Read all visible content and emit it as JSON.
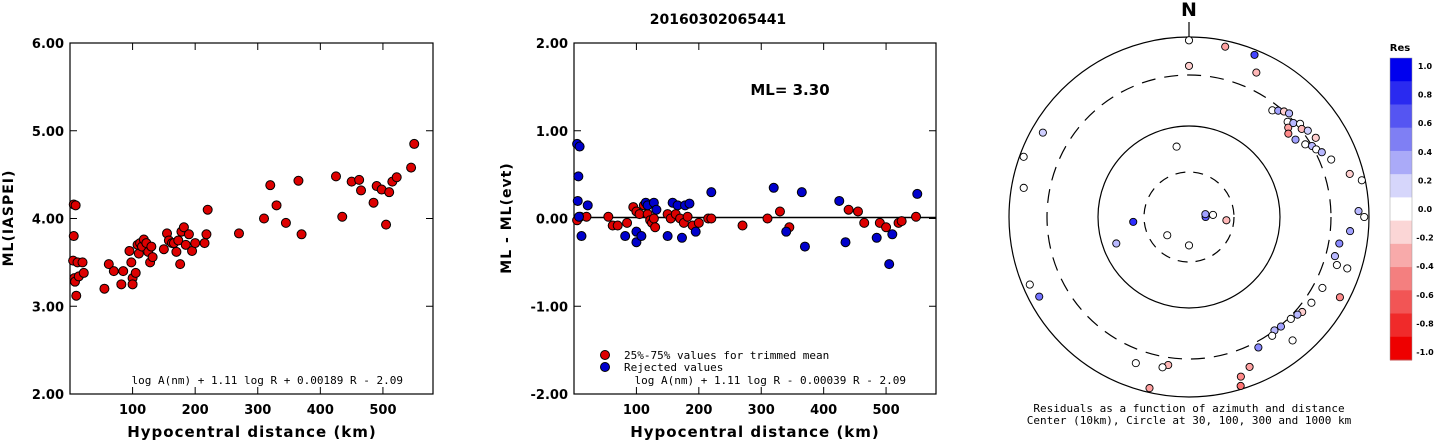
{
  "title": "20160302065441",
  "chart_data": [
    {
      "type": "scatter",
      "xlabel": "Hypocentral distance (km)",
      "ylabel": "ML(IASPEI)",
      "xlim": [
        0,
        580
      ],
      "ylim": [
        2.0,
        6.0
      ],
      "x_ticks": [
        "100",
        "200",
        "300",
        "400",
        "500"
      ],
      "y_ticks": [
        "2.00",
        "3.00",
        "4.00",
        "5.00",
        "6.00"
      ],
      "formula": "log A(nm) + 1.11 log R + 0.00189 R - 2.09",
      "series": [
        {
          "color": "#dd0000",
          "points": [
            [
              5,
              3.52
            ],
            [
              6,
              4.16
            ],
            [
              9,
              4.15
            ],
            [
              6,
              3.8
            ],
            [
              7,
              3.32
            ],
            [
              8,
              3.28
            ],
            [
              10,
              3.12
            ],
            [
              12,
              3.5
            ],
            [
              14,
              3.34
            ],
            [
              22,
              3.38
            ],
            [
              20,
              3.5
            ],
            [
              55,
              3.2
            ],
            [
              62,
              3.48
            ],
            [
              70,
              3.4
            ],
            [
              82,
              3.25
            ],
            [
              85,
              3.4
            ],
            [
              95,
              3.63
            ],
            [
              98,
              3.5
            ],
            [
              100,
              3.32
            ],
            [
              100,
              3.25
            ],
            [
              105,
              3.38
            ],
            [
              108,
              3.7
            ],
            [
              110,
              3.6
            ],
            [
              112,
              3.72
            ],
            [
              115,
              3.68
            ],
            [
              118,
              3.76
            ],
            [
              122,
              3.72
            ],
            [
              125,
              3.62
            ],
            [
              128,
              3.5
            ],
            [
              130,
              3.68
            ],
            [
              132,
              3.56
            ],
            [
              150,
              3.65
            ],
            [
              155,
              3.83
            ],
            [
              158,
              3.75
            ],
            [
              163,
              3.72
            ],
            [
              166,
              3.72
            ],
            [
              170,
              3.62
            ],
            [
              173,
              3.75
            ],
            [
              176,
              3.48
            ],
            [
              178,
              3.85
            ],
            [
              182,
              3.9
            ],
            [
              185,
              3.7
            ],
            [
              190,
              3.82
            ],
            [
              195,
              3.63
            ],
            [
              200,
              3.72
            ],
            [
              215,
              3.72
            ],
            [
              218,
              3.82
            ],
            [
              220,
              4.1
            ],
            [
              270,
              3.83
            ],
            [
              310,
              4.0
            ],
            [
              320,
              4.38
            ],
            [
              330,
              4.15
            ],
            [
              345,
              3.95
            ],
            [
              365,
              4.43
            ],
            [
              370,
              3.82
            ],
            [
              425,
              4.48
            ],
            [
              435,
              4.02
            ],
            [
              450,
              4.42
            ],
            [
              462,
              4.44
            ],
            [
              465,
              4.32
            ],
            [
              485,
              4.18
            ],
            [
              490,
              4.37
            ],
            [
              498,
              4.33
            ],
            [
              505,
              3.93
            ],
            [
              510,
              4.3
            ],
            [
              515,
              4.42
            ],
            [
              522,
              4.47
            ],
            [
              545,
              4.58
            ],
            [
              550,
              4.85
            ]
          ]
        }
      ]
    },
    {
      "type": "scatter",
      "xlabel": "Hypocentral distance (km)",
      "ylabel": "ML - ML(evt)",
      "xlim": [
        0,
        580
      ],
      "ylim": [
        -2.0,
        2.0
      ],
      "x_ticks": [
        "100",
        "200",
        "300",
        "400",
        "500"
      ],
      "y_ticks": [
        "-2.00",
        "-1.00",
        "0.00",
        "1.00",
        "2.00"
      ],
      "annotation": "ML= 3.30",
      "formula": "log A(nm) + 1.11 log R - 0.00039 R - 2.09",
      "series": [
        {
          "name": "25%-75% values for trimmed mean",
          "color": "#dd0000",
          "points": [
            [
              5,
              -0.02
            ],
            [
              10,
              0.02
            ],
            [
              20,
              0.02
            ],
            [
              55,
              0.02
            ],
            [
              62,
              -0.08
            ],
            [
              70,
              -0.08
            ],
            [
              85,
              -0.05
            ],
            [
              95,
              0.13
            ],
            [
              100,
              0.08
            ],
            [
              105,
              0.05
            ],
            [
              112,
              0.15
            ],
            [
              118,
              0.05
            ],
            [
              122,
              -0.02
            ],
            [
              125,
              -0.05
            ],
            [
              128,
              0.0
            ],
            [
              130,
              -0.1
            ],
            [
              150,
              0.05
            ],
            [
              155,
              0.0
            ],
            [
              163,
              0.05
            ],
            [
              170,
              0.0
            ],
            [
              176,
              -0.05
            ],
            [
              182,
              0.02
            ],
            [
              190,
              -0.08
            ],
            [
              200,
              -0.05
            ],
            [
              215,
              0.0
            ],
            [
              220,
              0.0
            ],
            [
              270,
              -0.08
            ],
            [
              310,
              0.0
            ],
            [
              330,
              0.08
            ],
            [
              345,
              -0.1
            ],
            [
              440,
              0.1
            ],
            [
              455,
              0.08
            ],
            [
              465,
              -0.05
            ],
            [
              490,
              -0.05
            ],
            [
              500,
              -0.1
            ],
            [
              520,
              -0.05
            ],
            [
              525,
              -0.03
            ],
            [
              548,
              0.02
            ]
          ]
        },
        {
          "name": "Rejected values",
          "color": "#0000cc",
          "points": [
            [
              5,
              0.85
            ],
            [
              9,
              0.82
            ],
            [
              7,
              0.48
            ],
            [
              6,
              0.2
            ],
            [
              8,
              0.02
            ],
            [
              12,
              -0.2
            ],
            [
              22,
              0.15
            ],
            [
              82,
              -0.2
            ],
            [
              100,
              -0.15
            ],
            [
              100,
              -0.27
            ],
            [
              108,
              -0.2
            ],
            [
              115,
              0.18
            ],
            [
              118,
              0.15
            ],
            [
              128,
              0.18
            ],
            [
              132,
              0.1
            ],
            [
              150,
              -0.2
            ],
            [
              158,
              0.18
            ],
            [
              166,
              0.15
            ],
            [
              173,
              -0.22
            ],
            [
              178,
              0.15
            ],
            [
              185,
              0.17
            ],
            [
              195,
              -0.15
            ],
            [
              220,
              0.3
            ],
            [
              320,
              0.35
            ],
            [
              340,
              -0.15
            ],
            [
              365,
              0.3
            ],
            [
              370,
              -0.32
            ],
            [
              425,
              0.2
            ],
            [
              435,
              -0.27
            ],
            [
              485,
              -0.22
            ],
            [
              505,
              -0.52
            ],
            [
              510,
              -0.18
            ],
            [
              550,
              0.28
            ]
          ]
        }
      ]
    }
  ],
  "polar": {
    "north_label": "N",
    "caption_line1": "Residuals as a function of azimuth and distance",
    "caption_line2": "Center (10km), Circle at 30, 100, 300 and 1000 km",
    "colorbar_title": "Res",
    "colorbar_ticks": [
      "1.0",
      "0.8",
      "0.6",
      "0.4",
      "0.2",
      "0.0",
      "-0.2",
      "-0.4",
      "-0.6",
      "-0.8",
      "-1.0"
    ],
    "colorbar_colors": [
      "#0000ee",
      "#2a2af0",
      "#5555f2",
      "#7f7ff4",
      "#aaaaf8",
      "#d6d6fb",
      "#ffffff",
      "#fbd6d6",
      "#f8aaaa",
      "#f47f7f",
      "#f25555",
      "#f02a2a",
      "#ee0000"
    ],
    "stations": [
      {
        "r_km": 60,
        "az": -10,
        "res": 0.0
      },
      {
        "r_km": 20,
        "az": 230,
        "res": 0.0
      },
      {
        "r_km": 20,
        "az": 180,
        "res": 0.0
      },
      {
        "r_km": 25,
        "az": 95,
        "res": -0.2
      },
      {
        "r_km": 15,
        "az": 90,
        "res": 0.6
      },
      {
        "r_km": 18,
        "az": 85,
        "res": 0.0
      },
      {
        "r_km": 15,
        "az": 80,
        "res": 0.3
      },
      {
        "r_km": 40,
        "az": 265,
        "res": 0.8
      },
      {
        "r_km": 70,
        "az": 250,
        "res": 0.2
      },
      {
        "r_km": 680,
        "az": -80,
        "res": 0.0
      },
      {
        "r_km": 700,
        "az": -60,
        "res": 0.1
      },
      {
        "r_km": 900,
        "az": 0,
        "res": 0.0
      },
      {
        "r_km": 400,
        "az": 0,
        "res": -0.1
      },
      {
        "r_km": 830,
        "az": 12,
        "res": -0.3
      },
      {
        "r_km": 850,
        "az": 22,
        "res": 0.7
      },
      {
        "r_km": 520,
        "az": 25,
        "res": -0.2
      },
      {
        "r_km": 260,
        "az": 38,
        "res": 0.0
      },
      {
        "r_km": 280,
        "az": 40,
        "res": 0.3
      },
      {
        "r_km": 300,
        "az": 42,
        "res": -0.1
      },
      {
        "r_km": 320,
        "az": 44,
        "res": 0.2
      },
      {
        "r_km": 270,
        "az": 46,
        "res": 0.0
      },
      {
        "r_km": 250,
        "az": 48,
        "res": -0.3
      },
      {
        "r_km": 230,
        "az": 50,
        "res": -0.4
      },
      {
        "r_km": 290,
        "az": 48,
        "res": 0.2
      },
      {
        "r_km": 330,
        "az": 50,
        "res": 0.0
      },
      {
        "r_km": 240,
        "az": 54,
        "res": 0.3
      },
      {
        "r_km": 310,
        "az": 52,
        "res": -0.2
      },
      {
        "r_km": 350,
        "az": 54,
        "res": 0.1
      },
      {
        "r_km": 270,
        "az": 58,
        "res": 0.0
      },
      {
        "r_km": 300,
        "az": 60,
        "res": 0.2
      },
      {
        "r_km": 380,
        "az": 58,
        "res": -0.1
      },
      {
        "r_km": 320,
        "az": 62,
        "res": 0.0
      },
      {
        "r_km": 360,
        "az": 64,
        "res": 0.2
      },
      {
        "r_km": 430,
        "az": 68,
        "res": 0.0
      },
      {
        "r_km": 650,
        "az": 75,
        "res": -0.1
      },
      {
        "r_km": 900,
        "az": 78,
        "res": 0.0
      },
      {
        "r_km": 720,
        "az": 88,
        "res": 0.2
      },
      {
        "r_km": 860,
        "az": 90,
        "res": 0.0
      },
      {
        "r_km": 560,
        "az": 95,
        "res": 0.3
      },
      {
        "r_km": 420,
        "az": 100,
        "res": 0.4
      },
      {
        "r_km": 400,
        "az": 105,
        "res": 0.2
      },
      {
        "r_km": 460,
        "az": 108,
        "res": 0.0
      },
      {
        "r_km": 650,
        "az": 108,
        "res": 0.0
      },
      {
        "r_km": 750,
        "az": 118,
        "res": -0.4
      },
      {
        "r_km": 400,
        "az": 118,
        "res": 0.0
      },
      {
        "r_km": 380,
        "az": 125,
        "res": 0.0
      },
      {
        "r_km": 360,
        "az": 130,
        "res": -0.1
      },
      {
        "r_km": 340,
        "az": 132,
        "res": 0.2
      },
      {
        "r_km": 320,
        "az": 135,
        "res": 0.0
      },
      {
        "r_km": 310,
        "az": 140,
        "res": 0.3
      },
      {
        "r_km": 300,
        "az": 143,
        "res": 0.2
      },
      {
        "r_km": 330,
        "az": 145,
        "res": 0.0
      },
      {
        "r_km": 550,
        "az": 140,
        "res": 0.0
      },
      {
        "r_km": 360,
        "az": 152,
        "res": 0.4
      },
      {
        "r_km": 560,
        "az": 158,
        "res": -0.3
      },
      {
        "r_km": 680,
        "az": 162,
        "res": -0.4
      },
      {
        "r_km": 900,
        "az": 163,
        "res": -0.5
      },
      {
        "r_km": 380,
        "az": 188,
        "res": -0.2
      },
      {
        "r_km": 420,
        "az": 190,
        "res": 0.0
      },
      {
        "r_km": 870,
        "az": 193,
        "res": -0.3
      },
      {
        "r_km": 720,
        "az": 242,
        "res": 0.5
      },
      {
        "r_km": 800,
        "az": 247,
        "res": 0.0
      },
      {
        "r_km": 880,
        "az": 290,
        "res": 0.0
      },
      {
        "r_km": 460,
        "az": 200,
        "res": 0.0
      }
    ]
  }
}
